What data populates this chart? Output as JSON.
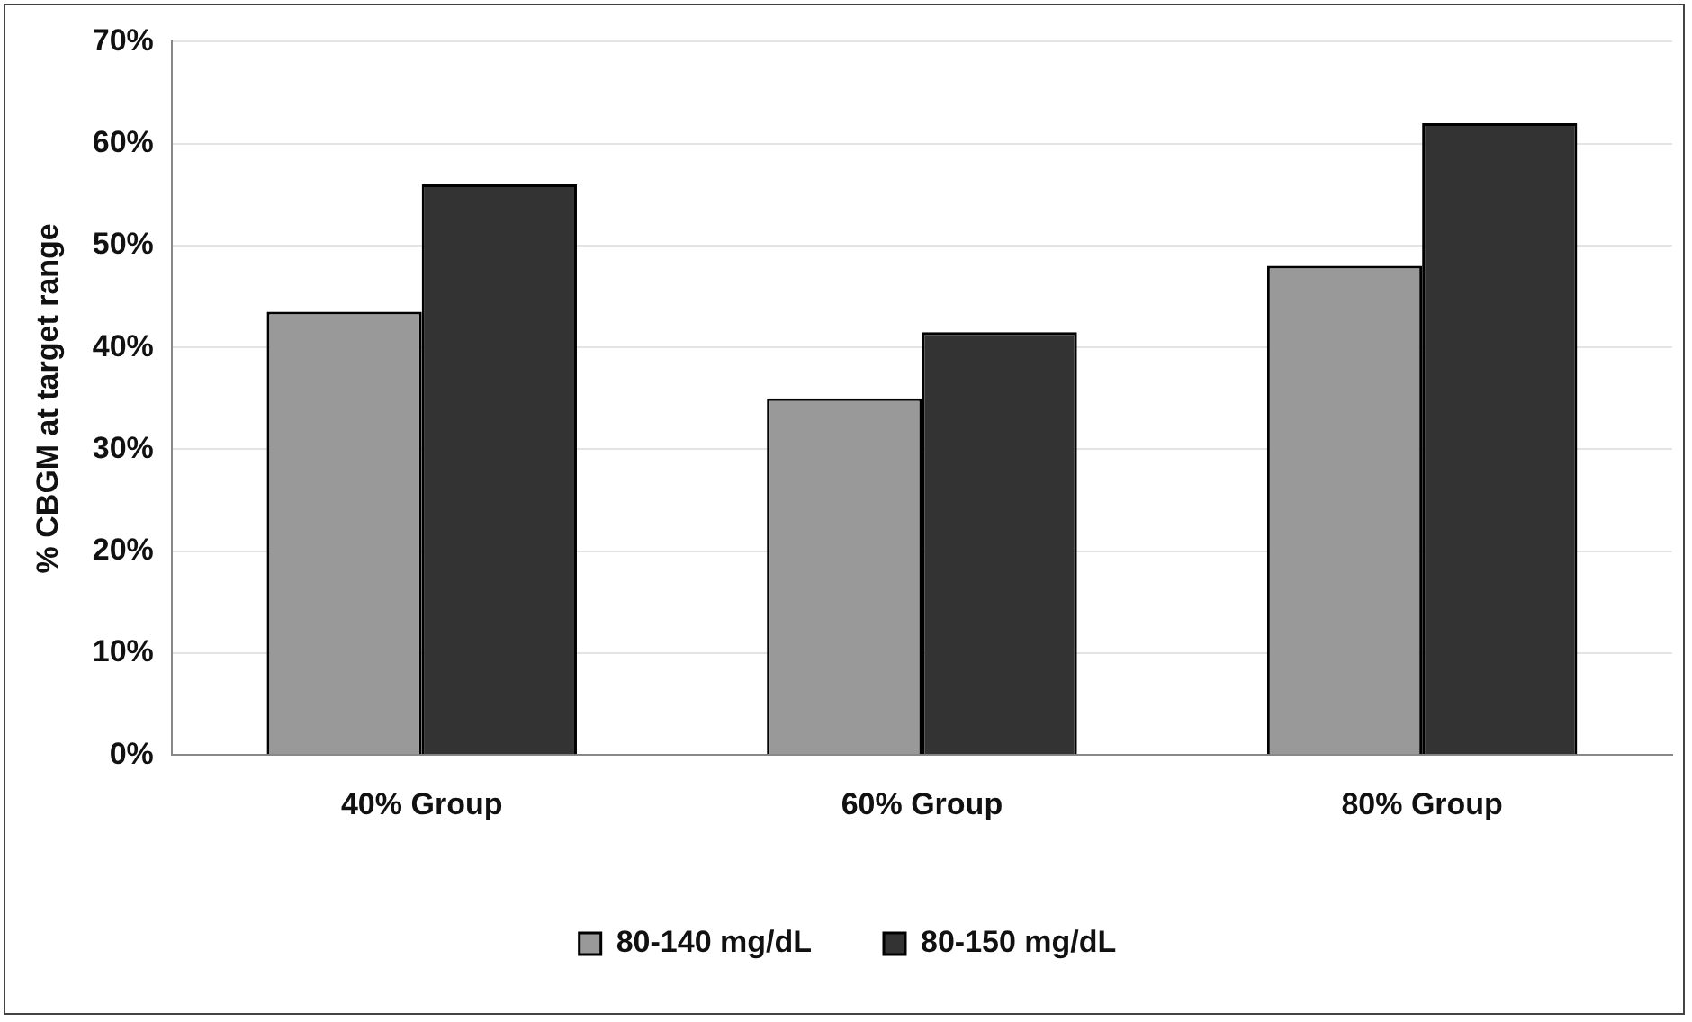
{
  "chart_data": {
    "type": "bar",
    "ylabel": "% CBGM at target range",
    "categories": [
      "40% Group",
      "60% Group",
      "80% Group"
    ],
    "series": [
      {
        "name": "80-140 mg/dL",
        "color": "#999999",
        "values": [
          43.5,
          35,
          48
        ]
      },
      {
        "name": "80-150 mg/dL",
        "color": "#333333",
        "values": [
          56,
          41.5,
          62
        ]
      }
    ],
    "ylim": [
      0,
      70
    ],
    "yticks": [
      {
        "value": 0,
        "label": "0%"
      },
      {
        "value": 10,
        "label": "10%"
      },
      {
        "value": 20,
        "label": "20%"
      },
      {
        "value": 30,
        "label": "30%"
      },
      {
        "value": 40,
        "label": "40%"
      },
      {
        "value": 50,
        "label": "50%"
      },
      {
        "value": 60,
        "label": "60%"
      },
      {
        "value": 70,
        "label": "70%"
      }
    ],
    "grid": "y",
    "legend": "bottom"
  }
}
